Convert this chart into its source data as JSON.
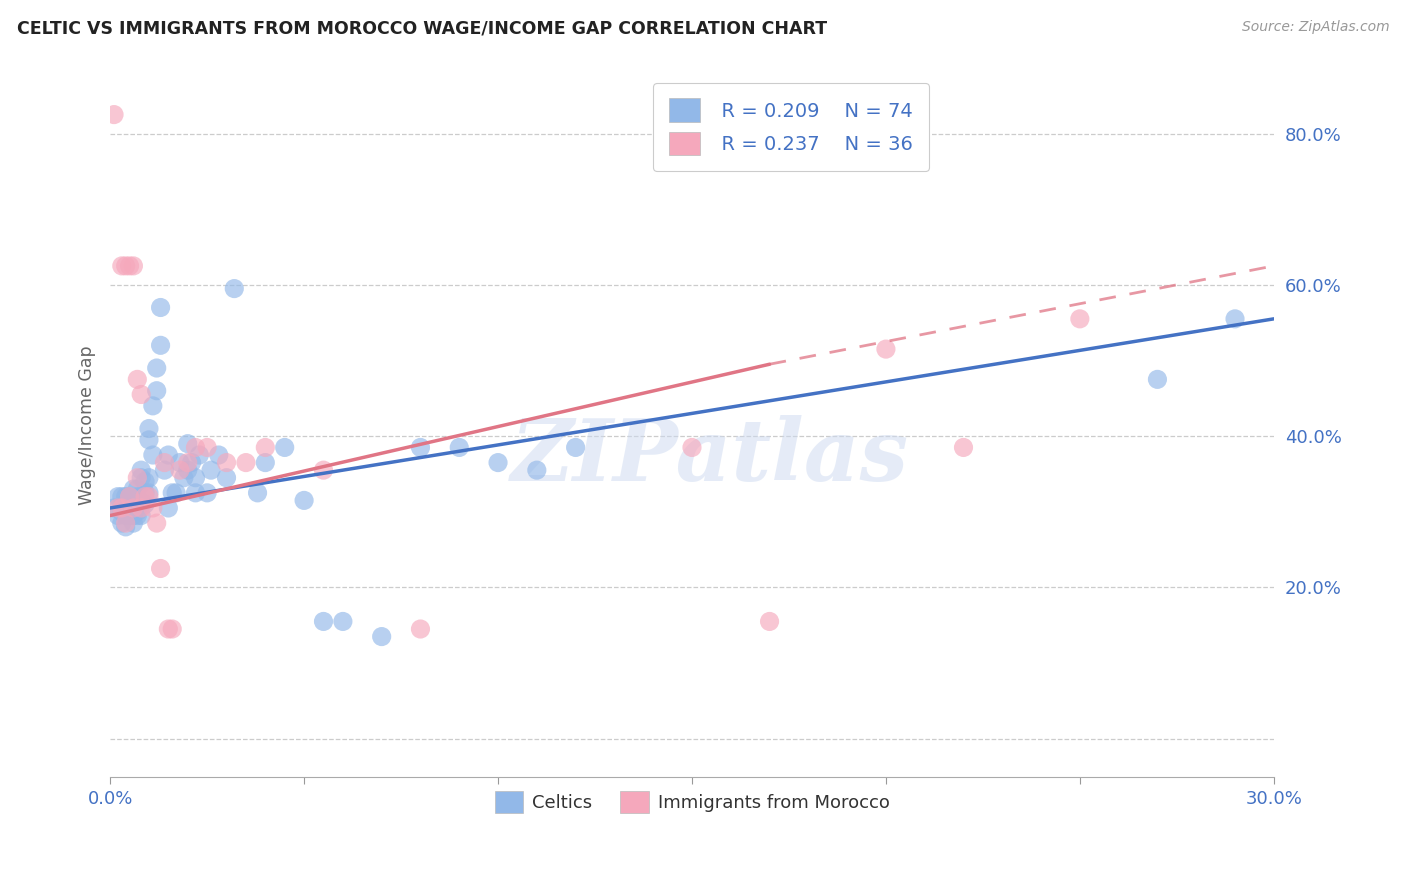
{
  "title": "CELTIC VS IMMIGRANTS FROM MOROCCO WAGE/INCOME GAP CORRELATION CHART",
  "source": "Source: ZipAtlas.com",
  "ylabel": "Wage/Income Gap",
  "color_celtic": "#92b8e8",
  "color_morocco": "#f5a8bc",
  "color_line_celtic": "#4472c4",
  "color_line_morocco": "#e07585",
  "color_ytick": "#4472c4",
  "color_xtick": "#4472c4",
  "color_watermark": "#ccd9f0",
  "watermark_text": "ZIPatlas",
  "r_celtic": "R = 0.209",
  "n_celtic": "N = 74",
  "r_morocco": "R = 0.237",
  "n_morocco": "N = 36",
  "xlim": [
    0.0,
    0.3
  ],
  "ylim": [
    -0.05,
    0.88
  ],
  "yticks": [
    0.0,
    0.2,
    0.4,
    0.6,
    0.8
  ],
  "celtic_line": [
    0.0,
    0.3,
    0.305,
    0.555
  ],
  "morocco_line_solid": [
    0.0,
    0.17,
    0.295,
    0.495
  ],
  "morocco_line_dash": [
    0.17,
    0.3,
    0.495,
    0.625
  ],
  "celtics_x": [
    0.001,
    0.002,
    0.002,
    0.003,
    0.003,
    0.003,
    0.004,
    0.004,
    0.004,
    0.004,
    0.005,
    0.005,
    0.005,
    0.005,
    0.006,
    0.006,
    0.006,
    0.006,
    0.006,
    0.007,
    0.007,
    0.007,
    0.007,
    0.007,
    0.008,
    0.008,
    0.008,
    0.008,
    0.008,
    0.009,
    0.009,
    0.009,
    0.01,
    0.01,
    0.01,
    0.01,
    0.011,
    0.011,
    0.012,
    0.012,
    0.013,
    0.013,
    0.014,
    0.015,
    0.015,
    0.016,
    0.017,
    0.018,
    0.019,
    0.02,
    0.02,
    0.021,
    0.022,
    0.022,
    0.023,
    0.025,
    0.026,
    0.028,
    0.03,
    0.032,
    0.038,
    0.04,
    0.045,
    0.05,
    0.055,
    0.06,
    0.07,
    0.08,
    0.09,
    0.1,
    0.11,
    0.12,
    0.27,
    0.29
  ],
  "celtics_y": [
    0.305,
    0.32,
    0.295,
    0.285,
    0.3,
    0.32,
    0.3,
    0.32,
    0.28,
    0.295,
    0.305,
    0.315,
    0.295,
    0.32,
    0.33,
    0.315,
    0.3,
    0.285,
    0.295,
    0.33,
    0.32,
    0.3,
    0.315,
    0.295,
    0.355,
    0.345,
    0.32,
    0.31,
    0.295,
    0.34,
    0.325,
    0.31,
    0.41,
    0.395,
    0.345,
    0.325,
    0.44,
    0.375,
    0.46,
    0.49,
    0.52,
    0.57,
    0.355,
    0.375,
    0.305,
    0.325,
    0.325,
    0.365,
    0.345,
    0.355,
    0.39,
    0.365,
    0.345,
    0.325,
    0.375,
    0.325,
    0.355,
    0.375,
    0.345,
    0.595,
    0.325,
    0.365,
    0.385,
    0.315,
    0.155,
    0.155,
    0.135,
    0.385,
    0.385,
    0.365,
    0.355,
    0.385,
    0.475,
    0.555
  ],
  "morocco_x": [
    0.001,
    0.002,
    0.003,
    0.003,
    0.004,
    0.004,
    0.005,
    0.005,
    0.006,
    0.006,
    0.007,
    0.007,
    0.008,
    0.008,
    0.009,
    0.01,
    0.011,
    0.012,
    0.013,
    0.014,
    0.015,
    0.016,
    0.018,
    0.02,
    0.022,
    0.025,
    0.03,
    0.035,
    0.04,
    0.055,
    0.08,
    0.15,
    0.17,
    0.2,
    0.22,
    0.25
  ],
  "morocco_y": [
    0.825,
    0.305,
    0.305,
    0.625,
    0.285,
    0.625,
    0.32,
    0.625,
    0.305,
    0.625,
    0.475,
    0.345,
    0.305,
    0.455,
    0.32,
    0.32,
    0.305,
    0.285,
    0.225,
    0.365,
    0.145,
    0.145,
    0.355,
    0.365,
    0.385,
    0.385,
    0.365,
    0.365,
    0.385,
    0.355,
    0.145,
    0.385,
    0.155,
    0.515,
    0.385,
    0.555
  ]
}
